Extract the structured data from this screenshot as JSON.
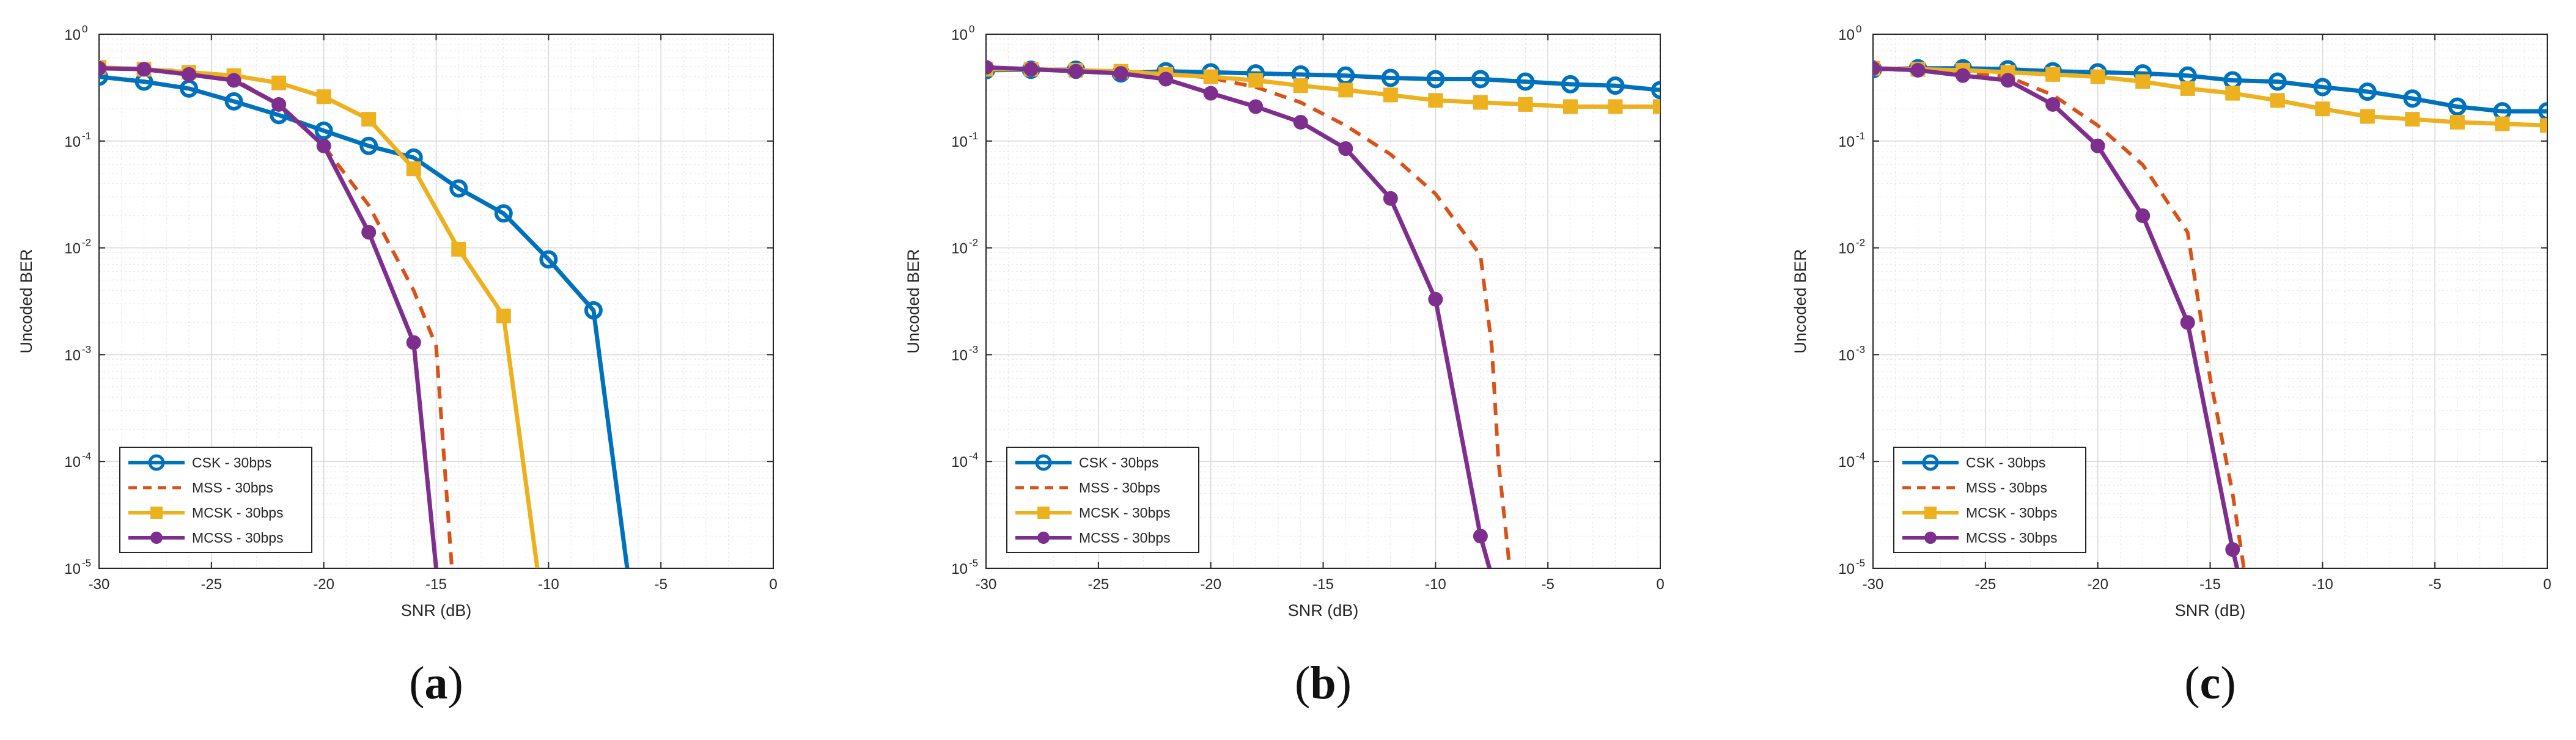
{
  "chart_data": [
    {
      "type": "line",
      "panel_label": "a",
      "xlabel": "SNR (dB)",
      "ylabel": "Uncoded BER",
      "yscale": "log",
      "xlim": [
        -30,
        0
      ],
      "ylim": [
        1e-05,
        1
      ],
      "xticks": [
        -30,
        -25,
        -20,
        -15,
        -10,
        -5,
        0
      ],
      "grid": true,
      "legend_position": "bottom-left",
      "series": [
        {
          "name": "CSK - 30bps",
          "color": "#0072BD",
          "marker": "circle",
          "dashed": false,
          "x": [
            -30,
            -28,
            -26,
            -24,
            -22,
            -20,
            -18,
            -16,
            -14,
            -12,
            -10,
            -8,
            -6.5
          ],
          "y": [
            0.4,
            0.36,
            0.31,
            0.235,
            0.175,
            0.125,
            0.09,
            0.07,
            0.036,
            0.021,
            0.0078,
            0.0026,
            1e-05
          ]
        },
        {
          "name": "MSS - 30bps",
          "color": "#D95319",
          "marker": "none",
          "dashed": true,
          "x": [
            -30,
            -28,
            -26,
            -24,
            -22,
            -20,
            -18,
            -16,
            -15,
            -14.3
          ],
          "y": [
            0.48,
            0.47,
            0.45,
            0.38,
            0.22,
            0.09,
            0.025,
            0.004,
            0.0012,
            1e-05
          ]
        },
        {
          "name": "MCSK - 30bps",
          "color": "#EDB120",
          "marker": "square",
          "dashed": false,
          "x": [
            -30,
            -28,
            -26,
            -24,
            -22,
            -20,
            -18,
            -16,
            -14,
            -12,
            -10.5
          ],
          "y": [
            0.49,
            0.47,
            0.44,
            0.41,
            0.35,
            0.26,
            0.16,
            0.055,
            0.0097,
            0.0023,
            1e-05
          ]
        },
        {
          "name": "MCSS - 30bps",
          "color": "#7E2F8E",
          "marker": "circle-filled",
          "dashed": false,
          "x": [
            -30,
            -28,
            -26,
            -24,
            -22,
            -20,
            -18,
            -16,
            -15
          ],
          "y": [
            0.48,
            0.47,
            0.42,
            0.37,
            0.22,
            0.09,
            0.014,
            0.0013,
            1e-05
          ]
        }
      ]
    },
    {
      "type": "line",
      "panel_label": "b",
      "xlabel": "SNR (dB)",
      "ylabel": "Uncoded BER",
      "yscale": "log",
      "xlim": [
        -30,
        0
      ],
      "ylim": [
        1e-05,
        1
      ],
      "xticks": [
        -30,
        -25,
        -20,
        -15,
        -10,
        -5,
        0
      ],
      "grid": true,
      "legend_position": "bottom-left",
      "series": [
        {
          "name": "CSK - 30bps",
          "color": "#0072BD",
          "marker": "circle",
          "dashed": false,
          "x": [
            -30,
            -28,
            -26,
            -24,
            -22,
            -20,
            -18,
            -16,
            -14,
            -12,
            -10,
            -8,
            -6,
            -4,
            -2,
            0
          ],
          "y": [
            0.46,
            0.465,
            0.465,
            0.43,
            0.45,
            0.44,
            0.43,
            0.42,
            0.41,
            0.39,
            0.38,
            0.38,
            0.36,
            0.34,
            0.33,
            0.3
          ]
        },
        {
          "name": "MSS - 30bps",
          "color": "#D95319",
          "marker": "none",
          "dashed": true,
          "x": [
            -30,
            -28,
            -26,
            -24,
            -22,
            -20,
            -18,
            -16,
            -14,
            -12,
            -10,
            -8,
            -7.5,
            -7.2,
            -6.7
          ],
          "y": [
            0.48,
            0.47,
            0.46,
            0.45,
            0.43,
            0.39,
            0.32,
            0.23,
            0.14,
            0.075,
            0.032,
            0.0085,
            0.0012,
            0.0001,
            1e-05
          ]
        },
        {
          "name": "MCSK - 30bps",
          "color": "#EDB120",
          "marker": "square",
          "dashed": false,
          "x": [
            -30,
            -28,
            -26,
            -24,
            -22,
            -20,
            -18,
            -16,
            -14,
            -12,
            -10,
            -8,
            -6,
            -4,
            -2,
            0
          ],
          "y": [
            0.47,
            0.47,
            0.46,
            0.45,
            0.42,
            0.4,
            0.37,
            0.33,
            0.3,
            0.27,
            0.24,
            0.23,
            0.22,
            0.21,
            0.21,
            0.21
          ]
        },
        {
          "name": "MCSS - 30bps",
          "color": "#7E2F8E",
          "marker": "circle-filled",
          "dashed": false,
          "x": [
            -30,
            -28,
            -26,
            -24,
            -22,
            -20,
            -18,
            -16,
            -14,
            -12,
            -10,
            -8,
            -7.6
          ],
          "y": [
            0.49,
            0.47,
            0.45,
            0.43,
            0.38,
            0.28,
            0.21,
            0.15,
            0.085,
            0.029,
            0.0033,
            2e-05,
            1e-05
          ]
        }
      ]
    },
    {
      "type": "line",
      "panel_label": "c",
      "xlabel": "SNR (dB)",
      "ylabel": "Uncoded BER",
      "yscale": "log",
      "xlim": [
        -30,
        0
      ],
      "ylim": [
        1e-05,
        1
      ],
      "xticks": [
        -30,
        -25,
        -20,
        -15,
        -10,
        -5,
        0
      ],
      "grid": true,
      "legend_position": "bottom-left",
      "series": [
        {
          "name": "CSK - 30bps",
          "color": "#0072BD",
          "marker": "circle",
          "dashed": false,
          "x": [
            -30,
            -28,
            -26,
            -24,
            -22,
            -20,
            -18,
            -16,
            -14,
            -12,
            -10,
            -8,
            -6,
            -4,
            -2,
            0
          ],
          "y": [
            0.47,
            0.48,
            0.48,
            0.47,
            0.45,
            0.44,
            0.43,
            0.41,
            0.37,
            0.36,
            0.32,
            0.29,
            0.25,
            0.21,
            0.19,
            0.19
          ]
        },
        {
          "name": "MSS - 30bps",
          "color": "#D95319",
          "marker": "none",
          "dashed": true,
          "x": [
            -30,
            -28,
            -26,
            -24,
            -22,
            -20,
            -18,
            -16,
            -15,
            -14,
            -13.5
          ],
          "y": [
            0.47,
            0.46,
            0.44,
            0.4,
            0.27,
            0.14,
            0.06,
            0.014,
            0.0006,
            5e-05,
            1e-05
          ]
        },
        {
          "name": "MCSK - 30bps",
          "color": "#EDB120",
          "marker": "square",
          "dashed": false,
          "x": [
            -30,
            -28,
            -26,
            -24,
            -22,
            -20,
            -18,
            -16,
            -14,
            -12,
            -10,
            -8,
            -6,
            -4,
            -2,
            0
          ],
          "y": [
            0.48,
            0.47,
            0.46,
            0.44,
            0.42,
            0.4,
            0.36,
            0.31,
            0.28,
            0.24,
            0.2,
            0.17,
            0.16,
            0.15,
            0.145,
            0.14
          ]
        },
        {
          "name": "MCSS - 30bps",
          "color": "#7E2F8E",
          "marker": "circle-filled",
          "dashed": false,
          "x": [
            -30,
            -28,
            -26,
            -24,
            -22,
            -20,
            -18,
            -16,
            -14,
            -13.8
          ],
          "y": [
            0.48,
            0.46,
            0.41,
            0.37,
            0.22,
            0.09,
            0.02,
            0.002,
            1.5e-05,
            1e-05
          ]
        }
      ]
    }
  ]
}
